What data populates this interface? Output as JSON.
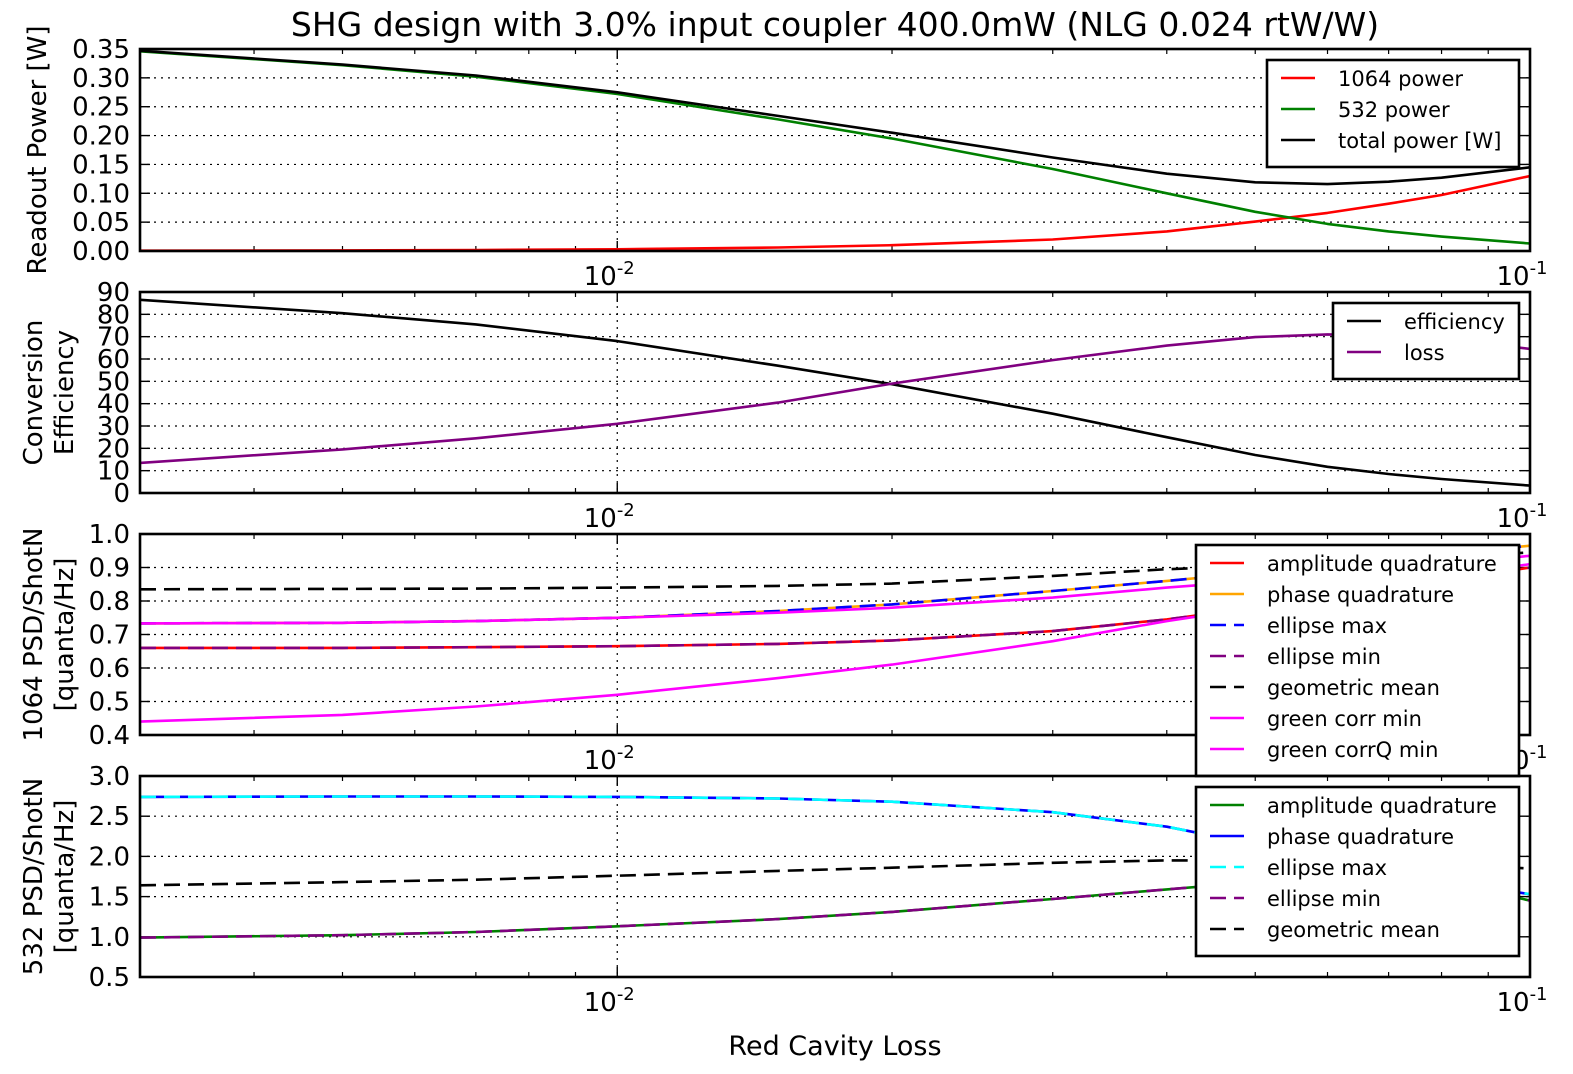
{
  "title": "SHG design with 3.0% input coupler 400.0mW (NLG 0.024 rtW/W)",
  "xlabel": "Red Cavity Loss",
  "chart_data": [
    {
      "type": "line",
      "ylabel": [
        "Readout Power [W]"
      ],
      "xscale": "log",
      "xlim": [
        0.003,
        0.1
      ],
      "ylim": [
        0,
        0.35
      ],
      "yticks": [
        "0.00",
        "0.05",
        "0.10",
        "0.15",
        "0.20",
        "0.25",
        "0.30",
        "0.35"
      ],
      "xticks": [
        {
          "base": "10",
          "exp": "-2",
          "value": 0.01
        },
        {
          "base": "10",
          "exp": "-1",
          "value": 0.1
        }
      ],
      "grid": true,
      "legend_position": "top-right",
      "series": [
        {
          "name": "1064 power",
          "color": "#ff0000",
          "style": "solid",
          "x": [
            0.003,
            0.005,
            0.007,
            0.01,
            0.015,
            0.02,
            0.03,
            0.04,
            0.05,
            0.06,
            0.07,
            0.08,
            0.1
          ],
          "y": [
            0.0005,
            0.001,
            0.0018,
            0.003,
            0.006,
            0.01,
            0.02,
            0.034,
            0.051,
            0.066,
            0.082,
            0.097,
            0.13
          ]
        },
        {
          "name": "532 power",
          "color": "#008000",
          "style": "solid",
          "x": [
            0.003,
            0.005,
            0.007,
            0.01,
            0.015,
            0.02,
            0.03,
            0.04,
            0.05,
            0.06,
            0.07,
            0.08,
            0.1
          ],
          "y": [
            0.346,
            0.322,
            0.302,
            0.272,
            0.228,
            0.195,
            0.142,
            0.1,
            0.068,
            0.047,
            0.034,
            0.025,
            0.013
          ]
        },
        {
          "name": "total power [W]",
          "color": "#000000",
          "style": "solid",
          "x": [
            0.003,
            0.005,
            0.007,
            0.01,
            0.015,
            0.02,
            0.03,
            0.04,
            0.05,
            0.06,
            0.07,
            0.08,
            0.1
          ],
          "y": [
            0.347,
            0.323,
            0.304,
            0.275,
            0.234,
            0.205,
            0.162,
            0.134,
            0.119,
            0.116,
            0.12,
            0.127,
            0.145
          ]
        }
      ]
    },
    {
      "type": "line",
      "ylabel": [
        "Conversion",
        "Efficiency"
      ],
      "xscale": "log",
      "xlim": [
        0.003,
        0.1
      ],
      "ylim": [
        0,
        90
      ],
      "yticks": [
        "0",
        "10",
        "20",
        "30",
        "40",
        "50",
        "60",
        "70",
        "80",
        "90"
      ],
      "xticks": [
        {
          "base": "10",
          "exp": "-2",
          "value": 0.01
        },
        {
          "base": "10",
          "exp": "-1",
          "value": 0.1
        }
      ],
      "grid": true,
      "legend_position": "top-right",
      "series": [
        {
          "name": "efficiency",
          "color": "#000000",
          "style": "solid",
          "x": [
            0.003,
            0.005,
            0.007,
            0.01,
            0.015,
            0.02,
            0.03,
            0.04,
            0.05,
            0.06,
            0.07,
            0.08,
            0.1
          ],
          "y": [
            86.5,
            80.5,
            75.5,
            68,
            57,
            48.7,
            35.5,
            25,
            17,
            11.75,
            8.5,
            6.25,
            3.3
          ]
        },
        {
          "name": "loss",
          "color": "#800080",
          "style": "solid",
          "x": [
            0.003,
            0.005,
            0.007,
            0.01,
            0.015,
            0.02,
            0.03,
            0.04,
            0.05,
            0.06,
            0.07,
            0.08,
            0.1
          ],
          "y": [
            13.5,
            19.5,
            24.5,
            31,
            40.5,
            49,
            59.5,
            66,
            69.8,
            71,
            70.5,
            69,
            64.5
          ]
        }
      ]
    },
    {
      "type": "line",
      "ylabel": [
        "1064  PSD/ShotN",
        "[quanta/Hz]"
      ],
      "xscale": "log",
      "xlim": [
        0.003,
        0.1
      ],
      "ylim": [
        0.4,
        1.0
      ],
      "yticks": [
        "0.4",
        "0.5",
        "0.6",
        "0.7",
        "0.8",
        "0.9",
        "1.0"
      ],
      "xticks": [
        {
          "base": "10",
          "exp": "-2",
          "value": 0.01
        },
        {
          "base": "10",
          "exp": "-1",
          "value": 0.1
        }
      ],
      "grid": true,
      "legend_position": "top-right",
      "series": [
        {
          "name": "amplitude quadrature",
          "color": "#ff0000",
          "style": "solid",
          "x": [
            0.003,
            0.005,
            0.007,
            0.01,
            0.015,
            0.02,
            0.03,
            0.04,
            0.05,
            0.06,
            0.08,
            0.1
          ],
          "y": [
            0.66,
            0.66,
            0.662,
            0.665,
            0.672,
            0.682,
            0.71,
            0.745,
            0.78,
            0.81,
            0.86,
            0.9
          ]
        },
        {
          "name": "phase quadrature",
          "color": "#ffa500",
          "style": "solid",
          "x": [
            0.003,
            0.005,
            0.007,
            0.01,
            0.015,
            0.02,
            0.03,
            0.04,
            0.05,
            0.06,
            0.08,
            0.1
          ],
          "y": [
            0.733,
            0.735,
            0.74,
            0.75,
            0.77,
            0.79,
            0.83,
            0.86,
            0.885,
            0.905,
            0.94,
            0.965
          ]
        },
        {
          "name": "ellipse max",
          "color": "#0000ff",
          "style": "dashed",
          "x": [
            0.003,
            0.005,
            0.007,
            0.01,
            0.015,
            0.02,
            0.03,
            0.04,
            0.05,
            0.06,
            0.08,
            0.1
          ],
          "y": [
            0.733,
            0.735,
            0.74,
            0.75,
            0.77,
            0.79,
            0.83,
            0.86,
            0.885,
            0.905,
            0.94,
            0.965
          ]
        },
        {
          "name": "ellipse min",
          "color": "#800080",
          "style": "dashed",
          "x": [
            0.003,
            0.005,
            0.007,
            0.01,
            0.015,
            0.02,
            0.03,
            0.04,
            0.05,
            0.06,
            0.08,
            0.1
          ],
          "y": [
            0.66,
            0.66,
            0.662,
            0.665,
            0.672,
            0.682,
            0.71,
            0.745,
            0.78,
            0.81,
            0.86,
            0.9
          ]
        },
        {
          "name": "geometric mean",
          "color": "#000000",
          "style": "dashed",
          "x": [
            0.003,
            0.005,
            0.007,
            0.01,
            0.015,
            0.02,
            0.03,
            0.04,
            0.05,
            0.06,
            0.08,
            0.1
          ],
          "y": [
            0.835,
            0.836,
            0.837,
            0.84,
            0.845,
            0.852,
            0.875,
            0.895,
            0.905,
            0.915,
            0.93,
            0.945
          ]
        },
        {
          "name": "green corr min",
          "color": "#ff00ff",
          "style": "solid",
          "x": [
            0.003,
            0.005,
            0.007,
            0.01,
            0.015,
            0.02,
            0.03,
            0.04,
            0.05,
            0.06,
            0.08,
            0.1
          ],
          "y": [
            0.44,
            0.46,
            0.485,
            0.52,
            0.57,
            0.61,
            0.68,
            0.74,
            0.78,
            0.82,
            0.87,
            0.91
          ]
        },
        {
          "name": "green corrQ min",
          "color": "#ff00ff",
          "style": "solid",
          "x": [
            0.003,
            0.005,
            0.007,
            0.01,
            0.015,
            0.02,
            0.03,
            0.04,
            0.05,
            0.06,
            0.08,
            0.1
          ],
          "y": [
            0.733,
            0.735,
            0.74,
            0.75,
            0.765,
            0.78,
            0.81,
            0.84,
            0.86,
            0.88,
            0.91,
            0.935
          ]
        }
      ]
    },
    {
      "type": "line",
      "ylabel": [
        "532  PSD/ShotN",
        "[quanta/Hz]"
      ],
      "xscale": "log",
      "xlim": [
        0.003,
        0.1
      ],
      "ylim": [
        0.5,
        3.0
      ],
      "yticks": [
        "0.5",
        "1.0",
        "1.5",
        "2.0",
        "2.5",
        "3.0"
      ],
      "xticks": [
        {
          "base": "10",
          "exp": "-2",
          "value": 0.01
        },
        {
          "base": "10",
          "exp": "-1",
          "value": 0.1
        }
      ],
      "grid": true,
      "legend_position": "top-right",
      "series": [
        {
          "name": "amplitude quadrature",
          "color": "#008000",
          "style": "solid",
          "x": [
            0.003,
            0.005,
            0.007,
            0.01,
            0.015,
            0.02,
            0.03,
            0.04,
            0.05,
            0.06,
            0.08,
            0.1
          ],
          "y": [
            0.99,
            1.02,
            1.06,
            1.13,
            1.22,
            1.31,
            1.47,
            1.59,
            1.68,
            1.74,
            1.7,
            1.45
          ]
        },
        {
          "name": "phase quadrature",
          "color": "#0000ff",
          "style": "solid",
          "x": [
            0.003,
            0.005,
            0.007,
            0.01,
            0.015,
            0.02,
            0.03,
            0.04,
            0.05,
            0.06,
            0.08,
            0.1
          ],
          "y": [
            2.74,
            2.745,
            2.745,
            2.74,
            2.72,
            2.68,
            2.55,
            2.37,
            2.15,
            1.95,
            1.7,
            1.53
          ]
        },
        {
          "name": "ellipse max",
          "color": "#00ffff",
          "style": "dashed",
          "x": [
            0.003,
            0.005,
            0.007,
            0.01,
            0.015,
            0.02,
            0.03,
            0.04,
            0.05,
            0.06,
            0.08,
            0.1
          ],
          "y": [
            2.74,
            2.745,
            2.745,
            2.74,
            2.72,
            2.68,
            2.55,
            2.37,
            2.15,
            1.95,
            1.7,
            1.53
          ]
        },
        {
          "name": "ellipse min",
          "color": "#800080",
          "style": "dashed",
          "x": [
            0.003,
            0.005,
            0.007,
            0.01,
            0.015,
            0.02,
            0.03,
            0.04,
            0.05,
            0.06,
            0.08,
            0.1
          ],
          "y": [
            0.99,
            1.02,
            1.06,
            1.13,
            1.22,
            1.31,
            1.47,
            1.59,
            1.68,
            1.74,
            1.7,
            1.45
          ]
        },
        {
          "name": "geometric mean",
          "color": "#000000",
          "style": "dashed",
          "x": [
            0.003,
            0.005,
            0.007,
            0.01,
            0.015,
            0.02,
            0.03,
            0.04,
            0.05,
            0.06,
            0.08,
            0.1
          ],
          "y": [
            1.64,
            1.68,
            1.71,
            1.76,
            1.82,
            1.86,
            1.92,
            1.95,
            1.95,
            1.94,
            1.9,
            1.85
          ]
        }
      ]
    }
  ]
}
